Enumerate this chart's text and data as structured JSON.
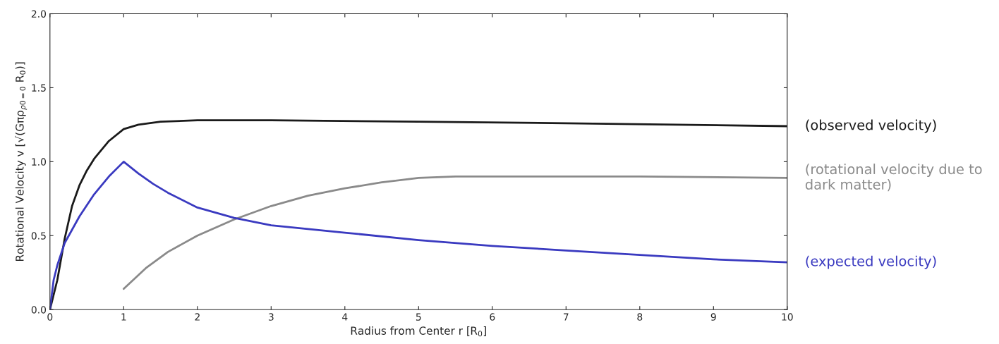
{
  "chart_data": {
    "type": "line",
    "xlabel": "Radius from Center r [R$_{0}$]",
    "ylabel": "Rotational Velocity v [√(Gπρ$_{ρ0=0}$ R$_{0}$)]",
    "xlim": [
      0,
      10
    ],
    "ylim": [
      0,
      2.0
    ],
    "xticks": [
      0,
      1,
      2,
      3,
      4,
      5,
      6,
      7,
      8,
      9,
      10
    ],
    "yticks": [
      {
        "value": 0,
        "label": "0.0"
      },
      {
        "value": 0.5,
        "label": "0.5"
      },
      {
        "value": 1.0,
        "label": "1.0"
      },
      {
        "value": 1.5,
        "label": "1.5"
      },
      {
        "value": 2.0,
        "label": "2.0"
      }
    ],
    "grid": false,
    "marker": "none",
    "line_style": "solid",
    "series": [
      {
        "name": "(observed velocity)",
        "color": "#1a1a1a",
        "x": [
          0,
          0.1,
          0.2,
          0.3,
          0.4,
          0.5,
          0.6,
          0.8,
          1.0,
          1.2,
          1.5,
          2,
          3,
          5,
          7,
          10
        ],
        "values": [
          0,
          0.2,
          0.48,
          0.7,
          0.84,
          0.94,
          1.02,
          1.14,
          1.22,
          1.25,
          1.27,
          1.28,
          1.28,
          1.27,
          1.26,
          1.24
        ]
      },
      {
        "name": "(rotational velocity due to dark matter)",
        "color": "#8a8a8a",
        "x": [
          1,
          1.3,
          1.6,
          2,
          2.5,
          3,
          3.5,
          4,
          4.5,
          5,
          5.5,
          6,
          8,
          10
        ],
        "values": [
          0.14,
          0.28,
          0.39,
          0.5,
          0.61,
          0.7,
          0.77,
          0.82,
          0.86,
          0.89,
          0.9,
          0.9,
          0.9,
          0.89
        ]
      },
      {
        "name": "(expected velocity)",
        "color": "#3a3ac0",
        "x": [
          0,
          0.05,
          0.1,
          0.2,
          0.4,
          0.6,
          0.8,
          1,
          1.2,
          1.4,
          1.6,
          2,
          2.5,
          3,
          4,
          5,
          6,
          7,
          8,
          9,
          10
        ],
        "values": [
          0,
          0.2,
          0.3,
          0.45,
          0.63,
          0.78,
          0.9,
          1.0,
          0.92,
          0.85,
          0.79,
          0.69,
          0.62,
          0.57,
          0.52,
          0.47,
          0.43,
          0.4,
          0.37,
          0.34,
          0.32
        ]
      }
    ]
  }
}
